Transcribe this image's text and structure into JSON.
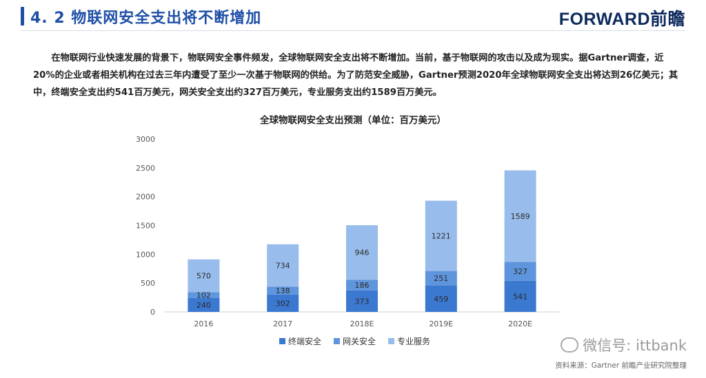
{
  "header": {
    "title": "4. 2  物联网安全支出将不断增加",
    "logo": "FORWARD前瞻"
  },
  "intro": "在物联网行业快速发展的背景下，物联网安全事件频发，全球物联网安全支出将不断增加。当前，基于物联网的攻击以及成为现实。据Gartner调查，近20%的企业或者相关机构在过去三年内遭受了至少一次基于物联网的供给。为了防范安全威胁，Gartner预测2020年全球物联网安全支出将达到26亿美元；其中，终端安全支出约541百万美元，网关安全支出约327百万美元，专业服务支出约1589百万美元。",
  "chart_data": {
    "type": "bar",
    "stacked": true,
    "title": "全球物联网安全支出预测（单位：百万美元）",
    "categories": [
      "2016",
      "2017",
      "2018E",
      "2019E",
      "2020E"
    ],
    "series": [
      {
        "name": "终端安全",
        "values": [
          240,
          302,
          373,
          459,
          541
        ],
        "color": "#3b78d0"
      },
      {
        "name": "网关安全",
        "values": [
          102,
          138,
          186,
          251,
          327
        ],
        "color": "#5e95dc"
      },
      {
        "name": "专业服务",
        "values": [
          570,
          734,
          946,
          1221,
          1589
        ],
        "color": "#98bdec"
      }
    ],
    "yticks": [
      "0",
      "500",
      "1000",
      "1500",
      "2000",
      "2500",
      "3000"
    ],
    "ylim": [
      0,
      3000
    ],
    "legend": "bottom"
  },
  "watermark": "微信号: ittbank",
  "source": "资料来源：Gartner  前瞻产业研究院整理"
}
